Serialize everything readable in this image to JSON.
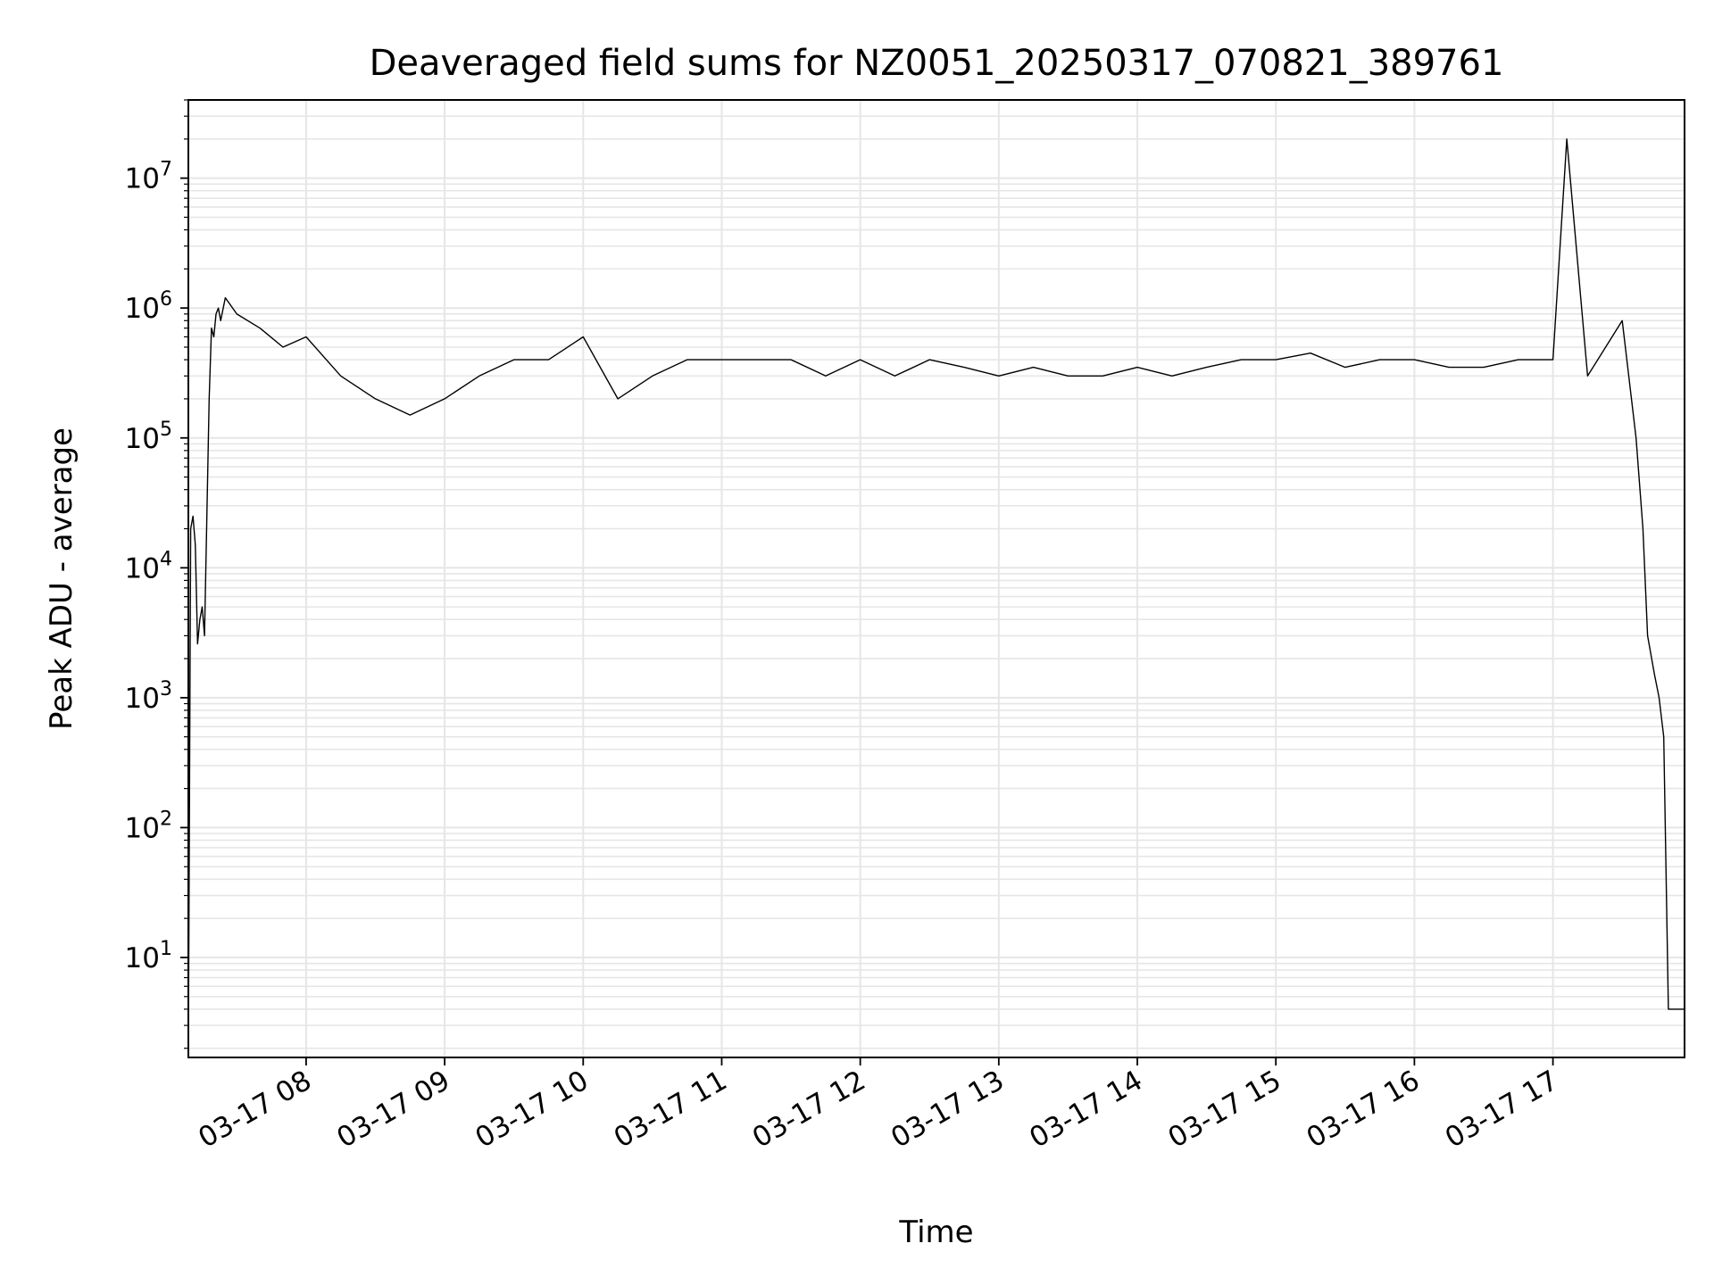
{
  "chart_data": {
    "type": "line",
    "title": "Deaveraged field sums for NZ0051_20250317_070821_389761",
    "xlabel": "Time",
    "ylabel": "Peak ADU - average",
    "yscale": "log",
    "ylim": [
      1.7,
      40000000
    ],
    "xlim": [
      "2025-03-17 07:09",
      "2025-03-17 17:57"
    ],
    "grid": true,
    "line_color": "#000000",
    "grid_color": "#e6e6e6",
    "x_tick_labels": [
      "03-17 08",
      "03-17 09",
      "03-17 10",
      "03-17 11",
      "03-17 12",
      "03-17 13",
      "03-17 14",
      "03-17 15",
      "03-17 16",
      "03-17 17"
    ],
    "y_tick_labels": [
      {
        "base": "10",
        "exp": "1"
      },
      {
        "base": "10",
        "exp": "2"
      },
      {
        "base": "10",
        "exp": "3"
      },
      {
        "base": "10",
        "exp": "4"
      },
      {
        "base": "10",
        "exp": "5"
      },
      {
        "base": "10",
        "exp": "6"
      },
      {
        "base": "10",
        "exp": "7"
      }
    ],
    "series": [
      {
        "x": [
          "2025-03-17 07:09",
          "2025-03-17 07:10",
          "2025-03-17 07:11",
          "2025-03-17 07:12",
          "2025-03-17 07:13",
          "2025-03-17 07:14",
          "2025-03-17 07:15",
          "2025-03-17 07:16",
          "2025-03-17 07:18",
          "2025-03-17 07:19",
          "2025-03-17 07:20",
          "2025-03-17 07:21",
          "2025-03-17 07:22",
          "2025-03-17 07:23",
          "2025-03-17 07:25",
          "2025-03-17 07:30",
          "2025-03-17 07:40",
          "2025-03-17 07:50",
          "2025-03-17 08:00",
          "2025-03-17 08:15",
          "2025-03-17 08:30",
          "2025-03-17 08:45",
          "2025-03-17 09:00",
          "2025-03-17 09:15",
          "2025-03-17 09:30",
          "2025-03-17 09:45",
          "2025-03-17 10:00",
          "2025-03-17 10:15",
          "2025-03-17 10:30",
          "2025-03-17 10:45",
          "2025-03-17 11:00",
          "2025-03-17 11:15",
          "2025-03-17 11:30",
          "2025-03-17 11:45",
          "2025-03-17 12:00",
          "2025-03-17 12:15",
          "2025-03-17 12:30",
          "2025-03-17 12:45",
          "2025-03-17 13:00",
          "2025-03-17 13:15",
          "2025-03-17 13:30",
          "2025-03-17 13:45",
          "2025-03-17 14:00",
          "2025-03-17 14:15",
          "2025-03-17 14:30",
          "2025-03-17 14:45",
          "2025-03-17 15:00",
          "2025-03-17 15:15",
          "2025-03-17 15:30",
          "2025-03-17 15:45",
          "2025-03-17 16:00",
          "2025-03-17 16:15",
          "2025-03-17 16:30",
          "2025-03-17 16:45",
          "2025-03-17 17:00",
          "2025-03-17 17:06",
          "2025-03-17 17:15",
          "2025-03-17 17:30",
          "2025-03-17 17:36",
          "2025-03-17 17:39",
          "2025-03-17 17:41",
          "2025-03-17 17:44",
          "2025-03-17 17:46",
          "2025-03-17 17:48",
          "2025-03-17 17:50",
          "2025-03-17 17:52",
          "2025-03-17 17:53",
          "2025-03-17 17:54",
          "2025-03-17 17:57"
        ],
        "y": [
          1.8,
          20000,
          25000,
          15000,
          2600,
          4000,
          5000,
          3000,
          200000,
          700000,
          600000,
          900000,
          1000000,
          800000,
          1200000,
          900000,
          700000,
          500000,
          600000,
          300000,
          200000,
          150000,
          200000,
          300000,
          400000,
          400000,
          600000,
          200000,
          300000,
          400000,
          400000,
          400000,
          400000,
          300000,
          400000,
          300000,
          400000,
          350000,
          300000,
          350000,
          300000,
          300000,
          350000,
          300000,
          350000,
          400000,
          400000,
          450000,
          350000,
          400000,
          400000,
          350000,
          350000,
          400000,
          400000,
          20000000,
          300000,
          800000,
          100000,
          20000,
          3000,
          1500,
          1000,
          500,
          4,
          4,
          4,
          4,
          4
        ]
      }
    ]
  }
}
